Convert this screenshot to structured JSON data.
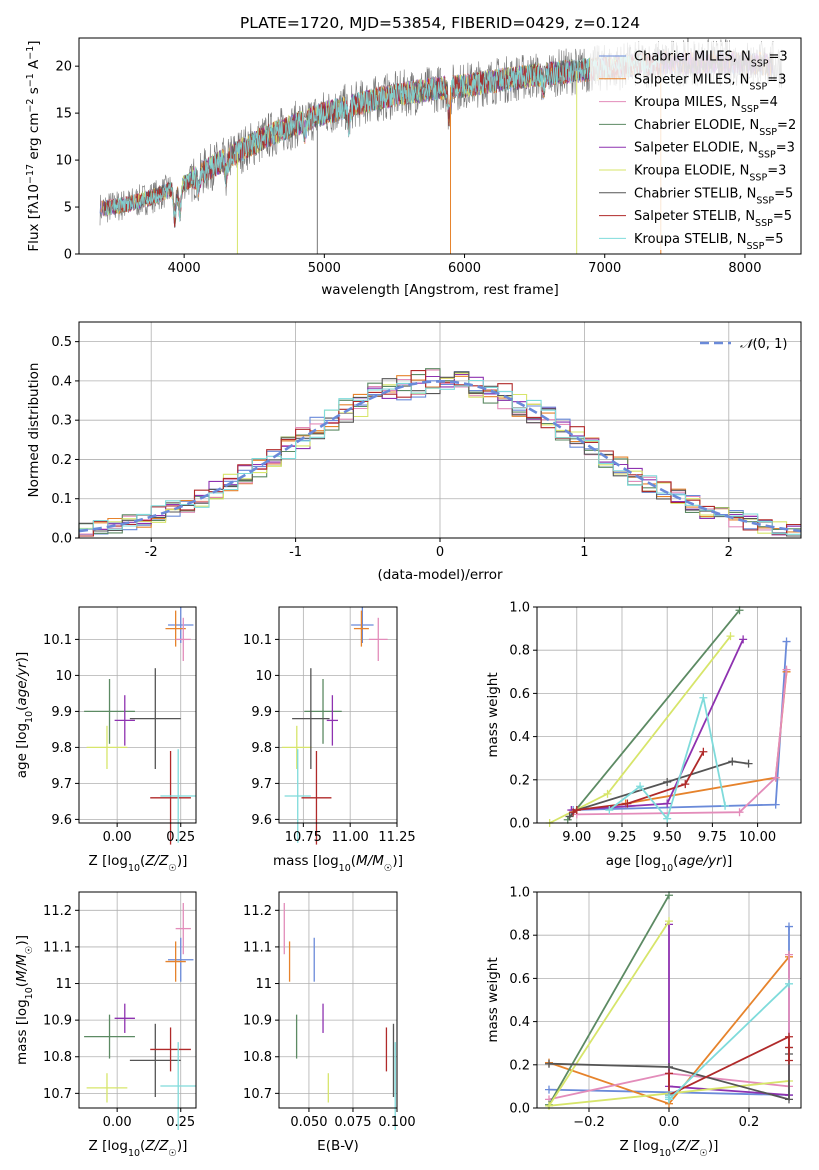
{
  "title": "PLATE=1720, MJD=53854, FIBERID=0429, z=0.124",
  "colors": {
    "Chabrier MILES": "#6a8ad9",
    "Salpeter MILES": "#e6832c",
    "Kroupa MILES": "#e38cba",
    "Chabrier ELODIE": "#5c8a63",
    "Salpeter ELODIE": "#8e32b0",
    "Kroupa ELODIE": "#d7e56a",
    "Chabrier STELIB": "#555555",
    "Salpeter STELIB": "#b02a2a",
    "Kroupa STELIB": "#7fdbdb"
  },
  "chart_data": [
    {
      "type": "line",
      "id": "spectrum",
      "title": "PLATE=1720, MJD=53854, FIBERID=0429, z=0.124",
      "xlabel": "wavelength [Angstrom, rest frame]",
      "ylabel": "Flux [fλ10⁻¹⁷ erg cm⁻² s⁻¹ A⁻¹]",
      "xlim": [
        3250,
        8400
      ],
      "ylim": [
        0,
        23
      ],
      "xticks": [
        4000,
        5000,
        6000,
        7000,
        8000
      ],
      "yticks": [
        0,
        5,
        10,
        15,
        20
      ],
      "grid": false,
      "legend_position": "upper-right",
      "legend_entries": [
        "Chabrier MILES, N_SSP=3",
        "Salpeter MILES, N_SSP=3",
        "Kroupa MILES, N_SSP=4",
        "Chabrier ELODIE, N_SSP=2",
        "Salpeter ELODIE, N_SSP=3",
        "Kroupa ELODIE, N_SSP=3",
        "Chabrier STELIB, N_SSP=5",
        "Salpeter STELIB, N_SSP=5",
        "Kroupa STELIB, N_SSP=5"
      ],
      "continuum_x": [
        3400,
        3600,
        3800,
        4000,
        4200,
        4400,
        4600,
        4800,
        5000,
        5200,
        5400,
        5600,
        5800,
        6000,
        6200,
        6400,
        6600,
        6800,
        7000,
        7200,
        7400,
        7600,
        7800,
        8000,
        8200
      ],
      "continuum_y": [
        4.8,
        5.3,
        6.2,
        7.5,
        9.3,
        11.0,
        12.6,
        13.8,
        15.0,
        15.8,
        16.6,
        17.2,
        17.6,
        17.9,
        18.4,
        18.8,
        19.2,
        19.5,
        19.8,
        20.1,
        20.3,
        20.4,
        20.4,
        20.3,
        20.2
      ]
    },
    {
      "type": "bar",
      "id": "residuals",
      "xlabel": "(data-model)/error",
      "ylabel": "Normed distribution",
      "xlim": [
        -2.5,
        2.5
      ],
      "ylim": [
        0,
        0.55
      ],
      "xticks": [
        -2,
        -1,
        0,
        1,
        2
      ],
      "yticks": [
        0.0,
        0.1,
        0.2,
        0.3,
        0.4,
        0.5
      ],
      "grid": true,
      "legend_position": "upper-right",
      "legend_entries": [
        "𝒩(0, 1)"
      ],
      "bin_width": 0.1,
      "reference_curve": "normal(0,1)"
    },
    {
      "type": "scatter",
      "id": "age-vs-Z",
      "xlabel": "Z [log10(Z/Z☉)]",
      "ylabel": "age  [log10(age/yr)]",
      "xlim": [
        -0.15,
        0.31
      ],
      "ylim": [
        9.59,
        10.19
      ],
      "xticks": [
        0.0,
        0.25
      ],
      "xtick_labels": [
        "0.00",
        "0.25"
      ],
      "yticks": [
        9.6,
        9.7,
        9.8,
        9.9,
        10.0,
        10.1
      ],
      "grid": true
    },
    {
      "type": "scatter",
      "id": "age-vs-mass",
      "xlabel": "mass [log10(M/M☉)]",
      "ylabel": "",
      "xlim": [
        10.62,
        11.25
      ],
      "ylim": [
        9.59,
        10.19
      ],
      "xticks": [
        10.75,
        11.0,
        11.25
      ],
      "xtick_labels": [
        "10.75",
        "11.00",
        "11.25"
      ],
      "yticks": [
        9.6,
        9.7,
        9.8,
        9.9,
        10.0,
        10.1
      ],
      "grid": true
    },
    {
      "type": "line",
      "id": "weight-vs-age",
      "xlabel": "age  [log10(age/yr)]",
      "ylabel": "mass weight",
      "xlim": [
        8.78,
        10.24
      ],
      "ylim": [
        0,
        1.0
      ],
      "xticks": [
        9.0,
        9.25,
        9.5,
        9.75,
        10.0
      ],
      "xtick_labels": [
        "9.00",
        "9.25",
        "9.50",
        "9.75",
        "10.00"
      ],
      "yticks": [
        0.0,
        0.2,
        0.4,
        0.6,
        0.8,
        1.0
      ],
      "grid": true
    },
    {
      "type": "scatter",
      "id": "mass-vs-Z",
      "xlabel": "Z [log10(Z/Z☉)]",
      "ylabel": "mass [log10(M/M☉)]",
      "xlim": [
        -0.15,
        0.31
      ],
      "ylim": [
        10.66,
        11.25
      ],
      "xticks": [
        0.0,
        0.25
      ],
      "xtick_labels": [
        "0.00",
        "0.25"
      ],
      "yticks": [
        10.7,
        10.8,
        10.9,
        11.0,
        11.1,
        11.2
      ],
      "grid": true
    },
    {
      "type": "scatter",
      "id": "mass-vs-EBV",
      "xlabel": "E(B-V)",
      "ylabel": "",
      "xlim": [
        0.033,
        0.1
      ],
      "ylim": [
        10.66,
        11.25
      ],
      "xticks": [
        0.05,
        0.075,
        0.1
      ],
      "xtick_labels": [
        "0.050",
        "0.075",
        "0.100"
      ],
      "yticks": [
        10.7,
        10.8,
        10.9,
        11.0,
        11.1,
        11.2
      ],
      "grid": true
    },
    {
      "type": "line",
      "id": "weight-vs-Z",
      "xlabel": "Z [log10(Z/Z☉)]",
      "ylabel": "mass weight",
      "xlim": [
        -0.33,
        0.33
      ],
      "ylim": [
        0,
        1.0
      ],
      "xticks": [
        -0.2,
        0.0,
        0.2
      ],
      "xtick_labels": [
        "−0.2",
        "0.0",
        "0.2"
      ],
      "yticks": [
        0.0,
        0.2,
        0.4,
        0.6,
        0.8,
        1.0
      ],
      "grid": true
    }
  ],
  "models": [
    {
      "name": "Chabrier MILES",
      "nssp": 3,
      "Z": 0.25,
      "Zerr": 0.05,
      "age": 10.14,
      "ageErr": 0.05,
      "mass": 11.065,
      "massErr": 0.06,
      "mErr": 0.06,
      "ebv": 0.053,
      "ages": [
        10.16,
        10.1,
        8.98
      ],
      "aw": [
        0.84,
        0.085,
        0.06
      ],
      "Zs": [
        0.3,
        0.3,
        -0.3
      ],
      "zw": [
        0.84,
        0.06,
        0.085
      ]
    },
    {
      "name": "Salpeter MILES",
      "nssp": 3,
      "Z": 0.23,
      "Zerr": 0.04,
      "age": 10.13,
      "ageErr": 0.05,
      "mass": 11.06,
      "massErr": 0.04,
      "mErr": 0.055,
      "ebv": 0.039,
      "ages": [
        10.16,
        10.1,
        9.27
      ],
      "aw": [
        0.7,
        0.21,
        0.09
      ],
      "Zs": [
        0.3,
        0.0,
        -0.3
      ],
      "zw": [
        0.7,
        0.02,
        0.21
      ]
    },
    {
      "name": "Kroupa MILES",
      "nssp": 4,
      "Z": 0.26,
      "Zerr": 0.03,
      "age": 10.1,
      "ageErr": 0.06,
      "mass": 11.15,
      "massErr": 0.05,
      "mErr": 0.07,
      "ebv": 0.036,
      "ages": [
        10.16,
        10.1,
        9.9,
        9.0
      ],
      "aw": [
        0.71,
        0.21,
        0.05,
        0.04
      ],
      "Zs": [
        0.3,
        0.3,
        0.0,
        -0.3
      ],
      "zw": [
        0.71,
        0.1,
        0.16,
        0.04
      ]
    },
    {
      "name": "Chabrier ELODIE",
      "nssp": 2,
      "Z": -0.03,
      "Zerr": 0.1,
      "age": 9.9,
      "ageErr": 0.09,
      "mass": 10.855,
      "massErr": 0.1,
      "mErr": 0.06,
      "ebv": 0.043,
      "ages": [
        9.9,
        8.95
      ],
      "aw": [
        0.985,
        0.015
      ],
      "Zs": [
        0.0,
        -0.3
      ],
      "zw": [
        0.985,
        0.015
      ]
    },
    {
      "name": "Salpeter ELODIE",
      "nssp": 3,
      "Z": 0.03,
      "Zerr": 0.04,
      "age": 9.875,
      "ageErr": 0.07,
      "mass": 10.905,
      "massErr": 0.03,
      "mErr": 0.04,
      "ebv": 0.058,
      "ages": [
        9.92,
        9.5,
        8.97
      ],
      "aw": [
        0.85,
        0.09,
        0.06
      ],
      "Zs": [
        0.0,
        0.0,
        0.3
      ],
      "zw": [
        0.85,
        0.1,
        0.06
      ]
    },
    {
      "name": "Kroupa ELODIE",
      "nssp": 3,
      "Z": -0.04,
      "Zerr": 0.08,
      "age": 9.8,
      "ageErr": 0.06,
      "mass": 10.715,
      "massErr": 0.08,
      "mErr": 0.04,
      "ebv": 0.061,
      "ages": [
        9.85,
        9.17,
        8.85
      ],
      "aw": [
        0.865,
        0.135,
        0.0
      ],
      "Zs": [
        0.0,
        -0.3,
        0.3
      ],
      "zw": [
        0.865,
        0.01,
        0.125
      ]
    },
    {
      "name": "Chabrier STELIB",
      "nssp": 5,
      "Z": 0.15,
      "Zerr": 0.1,
      "age": 9.88,
      "ageErr": 0.14,
      "mass": 10.79,
      "massErr": 0.1,
      "mErr": 0.1,
      "ebv": 0.098,
      "ages": [
        9.95,
        9.86,
        9.5,
        9.0,
        8.96
      ],
      "aw": [
        0.275,
        0.285,
        0.19,
        0.06,
        0.03
      ],
      "Zs": [
        -0.3,
        0.0,
        0.3,
        0.3,
        0.3
      ],
      "zw": [
        0.205,
        0.19,
        0.04,
        0.25,
        0.28
      ]
    },
    {
      "name": "Salpeter STELIB",
      "nssp": 5,
      "Z": 0.21,
      "Zerr": 0.08,
      "age": 9.66,
      "ageErr": 0.13,
      "mass": 10.82,
      "massErr": 0.08,
      "mErr": 0.06,
      "ebv": 0.094,
      "ages": [
        9.7,
        9.6,
        9.28,
        9.0,
        8.98
      ],
      "aw": [
        0.33,
        0.18,
        0.09,
        0.06,
        0.05
      ],
      "Zs": [
        0.0,
        0.0,
        0.3,
        0.3,
        0.3
      ],
      "zw": [
        0.16,
        0.06,
        0.33,
        0.28,
        0.22
      ]
    },
    {
      "name": "Kroupa STELIB",
      "nssp": 5,
      "Z": 0.24,
      "Zerr": 0.07,
      "age": 9.665,
      "ageErr": 0.13,
      "mass": 10.72,
      "massErr": 0.07,
      "mErr": 0.12,
      "ebv": 0.099,
      "ages": [
        9.82,
        9.7,
        9.5,
        9.35,
        9.18
      ],
      "aw": [
        0.08,
        0.58,
        0.02,
        0.17,
        0.06
      ],
      "Zs": [
        0.3,
        0.0,
        0.0,
        0.0,
        0.0
      ],
      "zw": [
        0.575,
        0.04,
        0.05,
        0.06,
        0.04
      ]
    }
  ]
}
